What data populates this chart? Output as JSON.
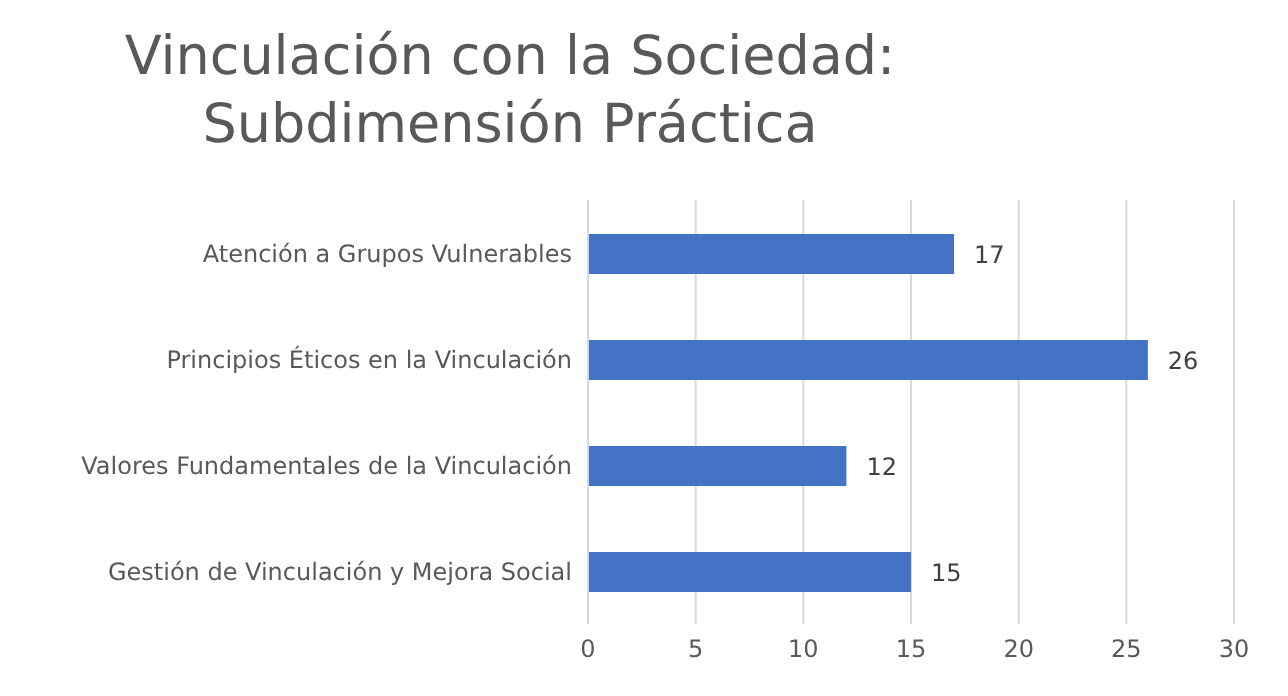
{
  "chart_data": {
    "type": "bar",
    "orientation": "horizontal",
    "title": "Vinculación con la Sociedad: Subdimensión Práctica",
    "categories": [
      "Atención a Grupos Vulnerables",
      "Principios Éticos en la Vinculación",
      "Valores Fundamentales de la Vinculación",
      "Gestión de Vinculación y Mejora Social"
    ],
    "values": [
      17,
      26,
      12,
      15
    ],
    "color": "#4472c4",
    "data_labels": true,
    "xlim": [
      0,
      30
    ],
    "xticks": [
      0,
      5,
      10,
      15,
      20,
      25,
      30
    ],
    "grid": "x"
  }
}
